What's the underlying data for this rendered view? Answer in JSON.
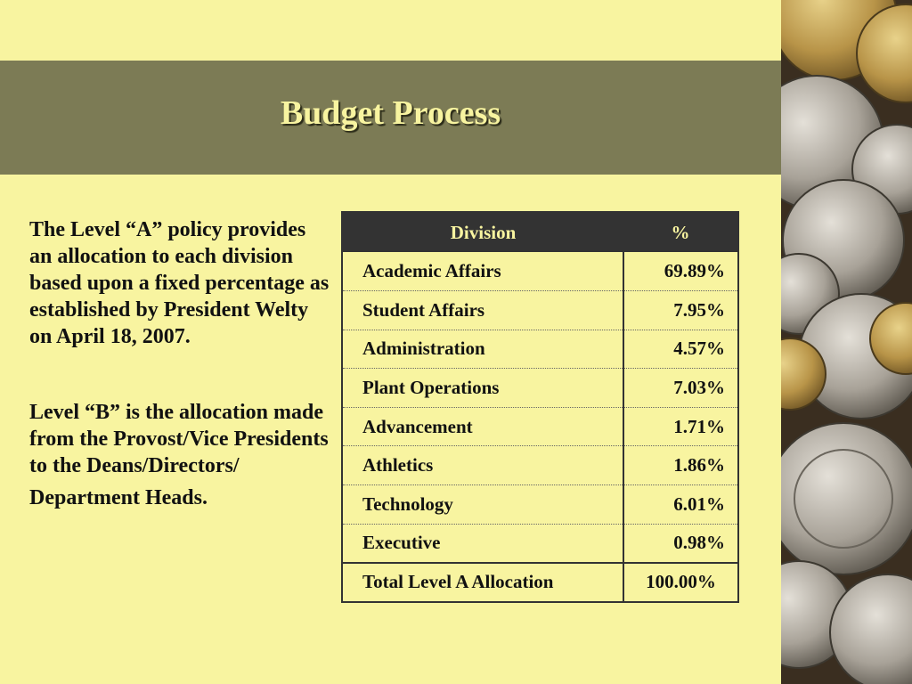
{
  "slide": {
    "title": "Budget Process",
    "paragraph1": "The Level “A” policy provides an allocation to each division based upon a fixed percentage as established by President Welty on April 18, 2007.",
    "paragraph2_main": "Level “B” is the allocation made from the Provost/Vice Presidents to the Deans/Directors/",
    "paragraph2_last": "Department Heads."
  },
  "table": {
    "headers": {
      "division": "Division",
      "percent": "%"
    },
    "rows": [
      {
        "division": "Academic Affairs",
        "percent": "69.89%"
      },
      {
        "division": "Student Affairs",
        "percent": "7.95%"
      },
      {
        "division": "Administration",
        "percent": "4.57%"
      },
      {
        "division": "Plant Operations",
        "percent": "7.03%"
      },
      {
        "division": "Advancement",
        "percent": "1.71%"
      },
      {
        "division": "Athletics",
        "percent": "1.86%"
      },
      {
        "division": "Technology",
        "percent": "6.01%"
      },
      {
        "division": "Executive",
        "percent": "0.98%"
      }
    ],
    "total": {
      "division": "Total Level A Allocation",
      "percent": "100.00%"
    }
  },
  "colors": {
    "background": "#f8f4a0",
    "title_band": "#7c7b55",
    "table_header": "#333333"
  }
}
